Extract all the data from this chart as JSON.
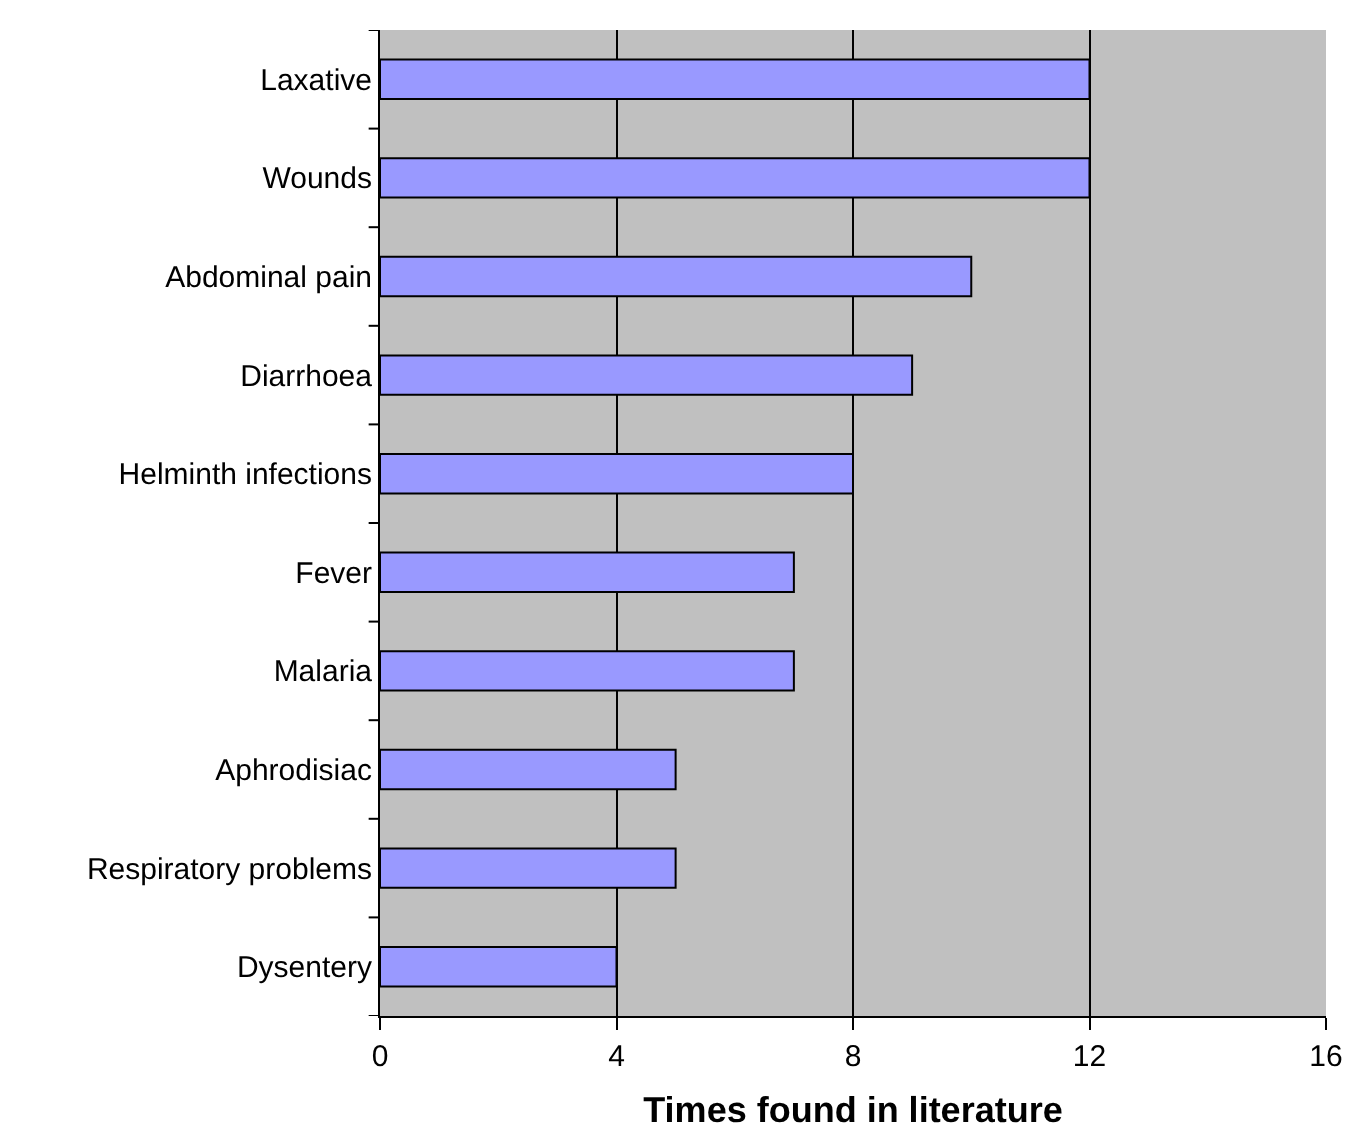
{
  "chart_data": {
    "type": "bar",
    "orientation": "horizontal",
    "xlabel": "Times found in literature",
    "categories": [
      "Laxative",
      "Wounds",
      "Abdominal pain",
      "Diarrhoea",
      "Helminth infections",
      "Fever",
      "Malaria",
      "Aphrodisiac",
      "Respiratory problems",
      "Dysentery"
    ],
    "values": [
      12,
      12,
      10,
      9,
      8,
      7,
      7,
      5,
      5,
      4
    ],
    "color": "#9999ff",
    "xlim": [
      0,
      16
    ],
    "xticks": [
      0,
      4,
      8,
      12,
      16
    ],
    "grid": "x",
    "legend": false
  }
}
